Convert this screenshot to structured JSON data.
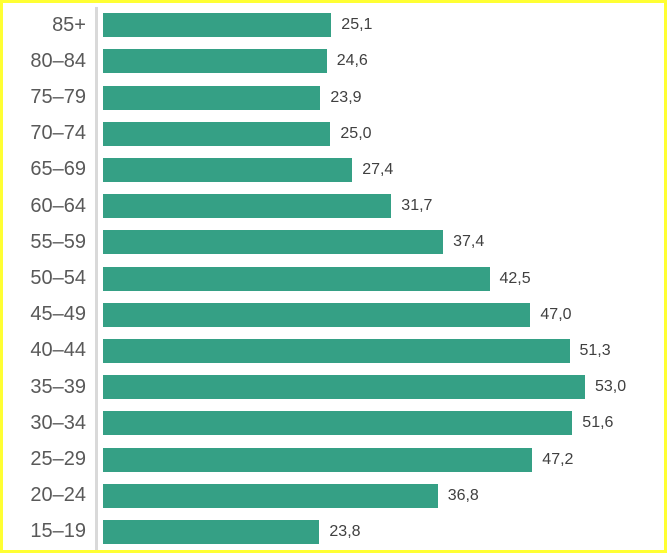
{
  "chart_data": {
    "type": "bar",
    "orientation": "horizontal",
    "title": "",
    "xlabel": "",
    "ylabel": "",
    "categories": [
      "85+",
      "80–84",
      "75–79",
      "70–74",
      "65–69",
      "60–64",
      "55–59",
      "50–54",
      "45–49",
      "40–44",
      "35–39",
      "30–34",
      "25–29",
      "20–24",
      "15–19"
    ],
    "values": [
      25.1,
      24.6,
      23.9,
      25.0,
      27.4,
      31.7,
      37.4,
      42.5,
      47.0,
      51.3,
      53.0,
      51.6,
      47.2,
      36.8,
      23.8
    ],
    "value_labels": [
      "25,1",
      "24,6",
      "23,9",
      "25,0",
      "27,4",
      "31,7",
      "37,4",
      "42,5",
      "47,0",
      "51,3",
      "53,0",
      "51,6",
      "47,2",
      "36,8",
      "23,8"
    ],
    "xlim": [
      0,
      53.0
    ],
    "grid": false,
    "legend": false,
    "data_labels": "outside-end",
    "number_format": "decimal-comma"
  },
  "colors": {
    "bar": "#35a085",
    "frame_border": "#ffff33",
    "axis_line": "#d9d9d9",
    "category_text": "#595959",
    "value_text": "#404040",
    "background": "#ffffff"
  }
}
